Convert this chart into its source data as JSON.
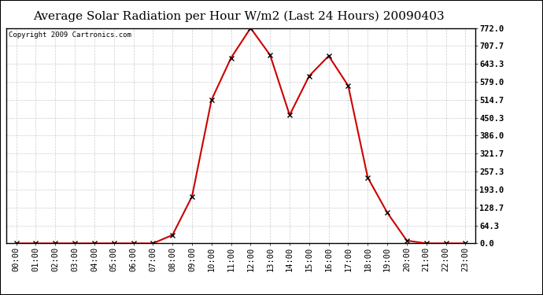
{
  "title": "Average Solar Radiation per Hour W/m2 (Last 24 Hours) 20090403",
  "copyright": "Copyright 2009 Cartronics.com",
  "x_labels": [
    "00:00",
    "01:00",
    "02:00",
    "03:00",
    "04:00",
    "05:00",
    "06:00",
    "07:00",
    "08:00",
    "09:00",
    "10:00",
    "11:00",
    "12:00",
    "13:00",
    "14:00",
    "15:00",
    "16:00",
    "17:00",
    "18:00",
    "19:00",
    "20:00",
    "21:00",
    "22:00",
    "23:00"
  ],
  "y_values": [
    0.0,
    0.0,
    0.0,
    0.0,
    0.0,
    0.0,
    0.0,
    0.0,
    30.0,
    168.0,
    514.7,
    665.0,
    772.0,
    675.0,
    460.0,
    600.0,
    672.0,
    565.0,
    236.0,
    110.0,
    10.0,
    0.0,
    0.0,
    0.0
  ],
  "y_min": 0.0,
  "y_max": 772.0,
  "y_ticks": [
    0.0,
    64.3,
    128.7,
    193.0,
    257.3,
    321.7,
    386.0,
    450.3,
    514.7,
    579.0,
    643.3,
    707.7,
    772.0
  ],
  "y_tick_labels": [
    "0.0",
    "64.3",
    "128.7",
    "193.0",
    "257.3",
    "321.7",
    "386.0",
    "450.3",
    "514.7",
    "579.0",
    "643.3",
    "707.7",
    "772.0"
  ],
  "line_color": "#cc0000",
  "marker_color": "#000000",
  "plot_bg_color": "#ffffff",
  "outer_bg_color": "#000000",
  "title_bg_color": "#ffffff",
  "grid_color": "#cccccc",
  "border_color": "#000000",
  "title_fontsize": 11,
  "tick_fontsize": 7.5,
  "copyright_fontsize": 6.5
}
